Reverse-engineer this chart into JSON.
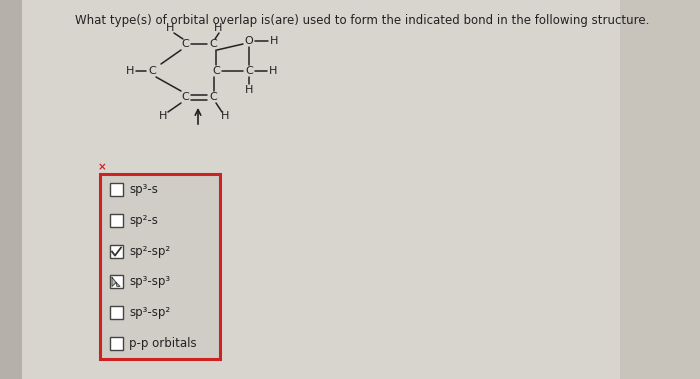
{
  "title": "What type(s) of orbital overlap is(are) used to form the indicated bond in the following structure.",
  "title_fontsize": 8.5,
  "bg_color": "#c8c4be",
  "content_color": "#dedad4",
  "left_strip_color": "#b0aca6",
  "checkbox_options": [
    {
      "label": "sp³-s",
      "checked": false
    },
    {
      "label": "sp²-s",
      "checked": false
    },
    {
      "label": "sp²-sp²",
      "checked": true
    },
    {
      "label": "sp³-sp³",
      "checked": false,
      "cursor": true
    },
    {
      "label": "sp³-sp²",
      "checked": false
    },
    {
      "label": "p-p orbitals",
      "checked": false
    }
  ],
  "checkbox_border_color": "#cc2222",
  "checkbox_outline": "#444444",
  "check_color": "#333333",
  "struct_color": "#222222",
  "struct_fs": 8.0
}
